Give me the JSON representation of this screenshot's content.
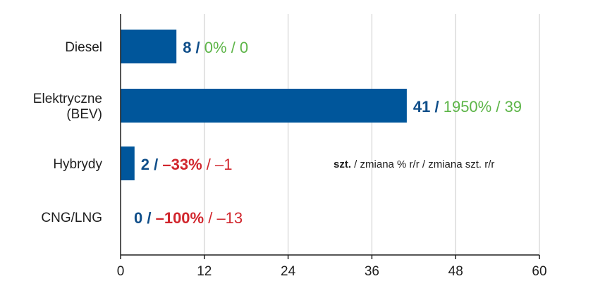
{
  "chart_data": {
    "type": "bar",
    "orientation": "horizontal",
    "categories": [
      "Diesel",
      "Elektryczne\n(BEV)",
      "Hybrydy",
      "CNG/LNG"
    ],
    "values": [
      8,
      41,
      2,
      0
    ],
    "change_pct": [
      "0%",
      "1950%",
      "–33%",
      "–100%"
    ],
    "change_units": [
      "0",
      "39",
      "–1",
      "–13"
    ],
    "change_sign": [
      "up",
      "up",
      "down",
      "down"
    ],
    "xlim": [
      0,
      60
    ],
    "xticks": [
      0,
      12,
      24,
      36,
      48,
      60
    ],
    "grid": true,
    "legend_note": {
      "bold": "szt.",
      "rest": " / zmiana % r/r / zmiana szt. r/r"
    },
    "colors": {
      "bar": "#00569b",
      "value": "#0f4e89",
      "positive": "#5db548",
      "negative": "#d1262d",
      "grid": "#c8c8c8",
      "axis": "#1e1e1e"
    }
  }
}
